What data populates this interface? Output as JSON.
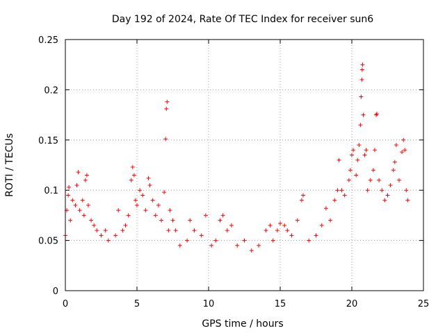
{
  "chart_data": {
    "type": "scatter",
    "title": "Day 192 of 2024, Rate Of TEC Index for receiver sun6",
    "xlabel": "GPS time / hours",
    "ylabel": "ROTI / TECUs",
    "xlim": [
      0,
      25
    ],
    "ylim": [
      0,
      0.25
    ],
    "x_ticks": [
      0,
      5,
      10,
      15,
      20,
      25
    ],
    "x_tick_labels": [
      "0",
      "5",
      "10",
      "15",
      "20",
      "25"
    ],
    "y_ticks": [
      0,
      0.05,
      0.1,
      0.15,
      0.2,
      0.25
    ],
    "y_tick_labels": [
      "0",
      "0.05",
      "0.1",
      "0.15",
      "0.2",
      "0.25"
    ],
    "grid": true,
    "grid_style": "dotted",
    "marker": "plus",
    "color": "#ff0000",
    "series": [
      {
        "points": [
          [
            0.0,
            0.055
          ],
          [
            0.1,
            0.08
          ],
          [
            0.2,
            0.095
          ],
          [
            0.25,
            0.103
          ],
          [
            0.35,
            0.07
          ],
          [
            0.5,
            0.09
          ],
          [
            0.7,
            0.085
          ],
          [
            0.8,
            0.105
          ],
          [
            0.9,
            0.118
          ],
          [
            1.0,
            0.08
          ],
          [
            1.2,
            0.09
          ],
          [
            1.3,
            0.075
          ],
          [
            1.4,
            0.11
          ],
          [
            1.5,
            0.115
          ],
          [
            1.6,
            0.085
          ],
          [
            1.8,
            0.07
          ],
          [
            2.0,
            0.065
          ],
          [
            2.2,
            0.06
          ],
          [
            2.5,
            0.055
          ],
          [
            2.8,
            0.06
          ],
          [
            3.0,
            0.05
          ],
          [
            3.5,
            0.055
          ],
          [
            3.7,
            0.08
          ],
          [
            4.0,
            0.06
          ],
          [
            4.2,
            0.065
          ],
          [
            4.4,
            0.075
          ],
          [
            4.6,
            0.11
          ],
          [
            4.7,
            0.123
          ],
          [
            4.8,
            0.115
          ],
          [
            4.9,
            0.09
          ],
          [
            5.0,
            0.085
          ],
          [
            5.2,
            0.1
          ],
          [
            5.4,
            0.095
          ],
          [
            5.6,
            0.08
          ],
          [
            5.8,
            0.112
          ],
          [
            5.9,
            0.105
          ],
          [
            6.1,
            0.09
          ],
          [
            6.3,
            0.075
          ],
          [
            6.5,
            0.085
          ],
          [
            6.7,
            0.07
          ],
          [
            6.9,
            0.098
          ],
          [
            7.0,
            0.151
          ],
          [
            7.05,
            0.181
          ],
          [
            7.1,
            0.188
          ],
          [
            7.2,
            0.06
          ],
          [
            7.3,
            0.08
          ],
          [
            7.5,
            0.07
          ],
          [
            7.7,
            0.06
          ],
          [
            8.0,
            0.045
          ],
          [
            8.5,
            0.05
          ],
          [
            8.7,
            0.07
          ],
          [
            9.0,
            0.06
          ],
          [
            9.5,
            0.055
          ],
          [
            9.8,
            0.075
          ],
          [
            10.2,
            0.045
          ],
          [
            10.5,
            0.05
          ],
          [
            10.8,
            0.07
          ],
          [
            11.0,
            0.075
          ],
          [
            11.3,
            0.06
          ],
          [
            11.6,
            0.065
          ],
          [
            12.0,
            0.045
          ],
          [
            12.5,
            0.05
          ],
          [
            13.0,
            0.04
          ],
          [
            13.5,
            0.045
          ],
          [
            14.0,
            0.06
          ],
          [
            14.3,
            0.065
          ],
          [
            14.5,
            0.05
          ],
          [
            14.8,
            0.06
          ],
          [
            15.0,
            0.067
          ],
          [
            15.3,
            0.065
          ],
          [
            15.5,
            0.06
          ],
          [
            15.8,
            0.055
          ],
          [
            16.2,
            0.07
          ],
          [
            16.5,
            0.09
          ],
          [
            16.6,
            0.095
          ],
          [
            17.0,
            0.05
          ],
          [
            17.5,
            0.055
          ],
          [
            17.9,
            0.065
          ],
          [
            18.2,
            0.082
          ],
          [
            18.5,
            0.07
          ],
          [
            18.8,
            0.09
          ],
          [
            19.0,
            0.1
          ],
          [
            19.1,
            0.13
          ],
          [
            19.3,
            0.1
          ],
          [
            19.5,
            0.095
          ],
          [
            19.8,
            0.11
          ],
          [
            19.9,
            0.12
          ],
          [
            20.0,
            0.135
          ],
          [
            20.1,
            0.14
          ],
          [
            20.3,
            0.115
          ],
          [
            20.4,
            0.13
          ],
          [
            20.5,
            0.145
          ],
          [
            20.6,
            0.165
          ],
          [
            20.65,
            0.193
          ],
          [
            20.7,
            0.21
          ],
          [
            20.72,
            0.22
          ],
          [
            20.75,
            0.225
          ],
          [
            20.8,
            0.175
          ],
          [
            20.9,
            0.135
          ],
          [
            21.0,
            0.14
          ],
          [
            21.1,
            0.1
          ],
          [
            21.3,
            0.11
          ],
          [
            21.5,
            0.12
          ],
          [
            21.6,
            0.14
          ],
          [
            21.7,
            0.175
          ],
          [
            21.75,
            0.176
          ],
          [
            21.9,
            0.11
          ],
          [
            22.1,
            0.1
          ],
          [
            22.3,
            0.09
          ],
          [
            22.5,
            0.095
          ],
          [
            22.7,
            0.105
          ],
          [
            22.9,
            0.12
          ],
          [
            23.0,
            0.128
          ],
          [
            23.1,
            0.145
          ],
          [
            23.3,
            0.11
          ],
          [
            23.5,
            0.138
          ],
          [
            23.6,
            0.15
          ],
          [
            23.7,
            0.14
          ],
          [
            23.8,
            0.1
          ],
          [
            23.9,
            0.09
          ]
        ]
      }
    ]
  }
}
